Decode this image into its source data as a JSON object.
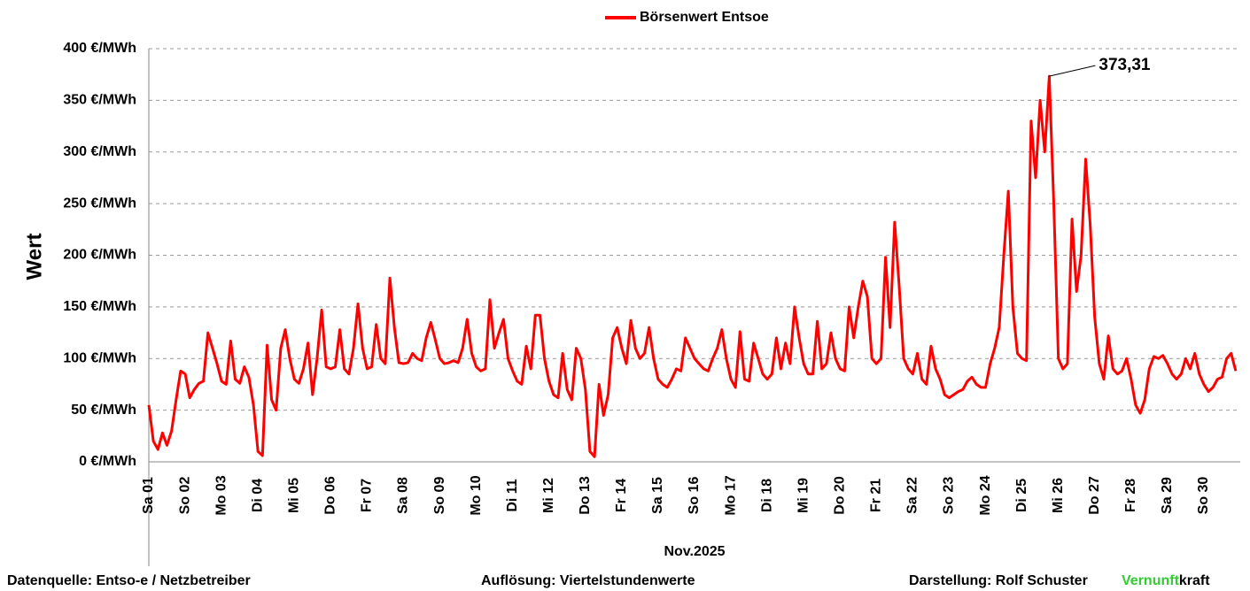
{
  "chart_data": {
    "type": "line",
    "legend_position": "top",
    "y_label": "Wert",
    "x_label": "Nov.2025",
    "categories": [
      "Sa 01",
      "So 02",
      "Mo 03",
      "Di 04",
      "Mi 05",
      "Do 06",
      "Fr 07",
      "Sa 08",
      "So 09",
      "Mo 10",
      "Di 11",
      "Mi 12",
      "Do 13",
      "Fr 14",
      "Sa 15",
      "So 16",
      "Mo 17",
      "Di 18",
      "Mi 19",
      "Do 20",
      "Fr 21",
      "Sa 22",
      "So 23",
      "Mo 24",
      "Di 25",
      "Mi 26",
      "Do 27",
      "Fr 28",
      "Sa 29",
      "So 30"
    ],
    "series": [
      {
        "name": "Börsenwert Entsoe",
        "color": "#ff0000",
        "values": [
          [
            55,
            20,
            12,
            28,
            16,
            30,
            60,
            88
          ],
          [
            85,
            62,
            70,
            76,
            78,
            125,
            110,
            95
          ],
          [
            78,
            75,
            117,
            80,
            76,
            92,
            82,
            55
          ],
          [
            10,
            6,
            113,
            60,
            50,
            110,
            128,
            100
          ],
          [
            80,
            76,
            90,
            115,
            65,
            100,
            147,
            92
          ],
          [
            90,
            92,
            128,
            90,
            85,
            110,
            153,
            110
          ],
          [
            90,
            92,
            133,
            100,
            95,
            178,
            130,
            96
          ],
          [
            95,
            96,
            105,
            100,
            98,
            120,
            135,
            118
          ],
          [
            100,
            95,
            96,
            98,
            96,
            110,
            138,
            105
          ],
          [
            92,
            88,
            90,
            157,
            110,
            125,
            138,
            100
          ],
          [
            88,
            78,
            75,
            112,
            90,
            142,
            142,
            100
          ],
          [
            78,
            65,
            62,
            105,
            70,
            60,
            110,
            100
          ],
          [
            70,
            10,
            5,
            75,
            45,
            65,
            120,
            130
          ],
          [
            110,
            95,
            137,
            110,
            100,
            105,
            130,
            100
          ],
          [
            80,
            75,
            72,
            80,
            90,
            88,
            120,
            110
          ],
          [
            100,
            95,
            90,
            88,
            100,
            110,
            128,
            100
          ],
          [
            80,
            72,
            126,
            80,
            78,
            115,
            100,
            85
          ],
          [
            80,
            85,
            120,
            90,
            115,
            95,
            150,
            120
          ],
          [
            95,
            85,
            85,
            136,
            90,
            95,
            125,
            100
          ],
          [
            90,
            88,
            150,
            120,
            150,
            175,
            160,
            100
          ],
          [
            95,
            100,
            198,
            130,
            232,
            170,
            100,
            90
          ],
          [
            85,
            105,
            80,
            75,
            112,
            90,
            80,
            65
          ],
          [
            62,
            65,
            68,
            70,
            78,
            82,
            75,
            72
          ],
          [
            72,
            95,
            110,
            130,
            200,
            262,
            150,
            105
          ],
          [
            100,
            98,
            330,
            275,
            350,
            300,
            373.31,
            250
          ],
          [
            100,
            90,
            95,
            235,
            165,
            200,
            293,
            230
          ],
          [
            140,
            95,
            80,
            122,
            90,
            85,
            88,
            100
          ],
          [
            80,
            55,
            47,
            60,
            90,
            102,
            100,
            103
          ],
          [
            95,
            85,
            80,
            85,
            100,
            90,
            105,
            85
          ],
          [
            75,
            68,
            72,
            80,
            82,
            100,
            105,
            88
          ]
        ]
      }
    ],
    "annotations": [
      {
        "value": 373.31,
        "label": "373,31"
      }
    ],
    "ylim": [
      0,
      400
    ],
    "yticks": [
      {
        "value": 0,
        "label": "0 €/MWh"
      },
      {
        "value": 50,
        "label": "50 €/MWh"
      },
      {
        "value": 100,
        "label": "100 €/MWh"
      },
      {
        "value": 150,
        "label": "150 €/MWh"
      },
      {
        "value": 200,
        "label": "200 €/MWh"
      },
      {
        "value": 250,
        "label": "250 €/MWh"
      },
      {
        "value": 300,
        "label": "300 €/MWh"
      },
      {
        "value": 350,
        "label": "350 €/MWh"
      },
      {
        "value": 400,
        "label": "400 €/MWh"
      }
    ],
    "grid": true
  },
  "footer": {
    "source": "Datenquelle:  Entso-e  / Netzbetreiber",
    "resolution": "Auflösung: Viertelstundenwerte",
    "author": "Darstellung:  Rolf Schuster",
    "brand_1": "Vernunft",
    "brand_2": "kraft"
  }
}
